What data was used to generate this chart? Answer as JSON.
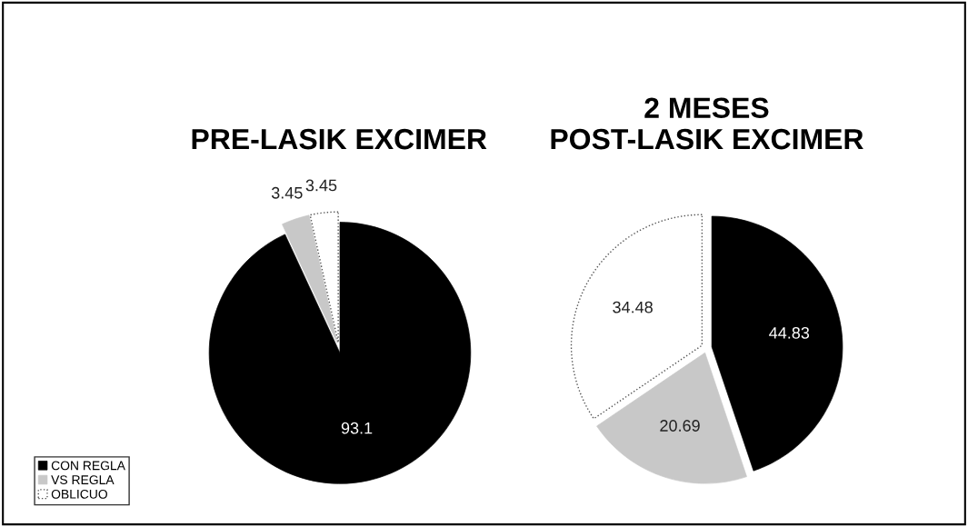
{
  "chart_data": [
    {
      "type": "pie",
      "title": "PRE-LASIK EXCIMER",
      "categories": [
        "CON REGLA",
        "VS REGLA",
        "OBLICUO"
      ],
      "values": [
        93.1,
        3.45,
        3.45
      ],
      "colors": [
        "#000000",
        "#c8c8c8",
        "#ffffff"
      ],
      "data_labels": true,
      "legend": "bottom left",
      "line_style": "dotted"
    },
    {
      "type": "pie",
      "title": "2 MESES\nPOST-LASIK EXCIMER",
      "categories": [
        null,
        null,
        null
      ],
      "values": [
        44.83,
        20.69,
        34.48
      ],
      "colors": [
        "#000000",
        "#c8c8c8",
        "#ffffff"
      ],
      "data_labels": true,
      "legend": false,
      "line_style": "dotted"
    }
  ]
}
